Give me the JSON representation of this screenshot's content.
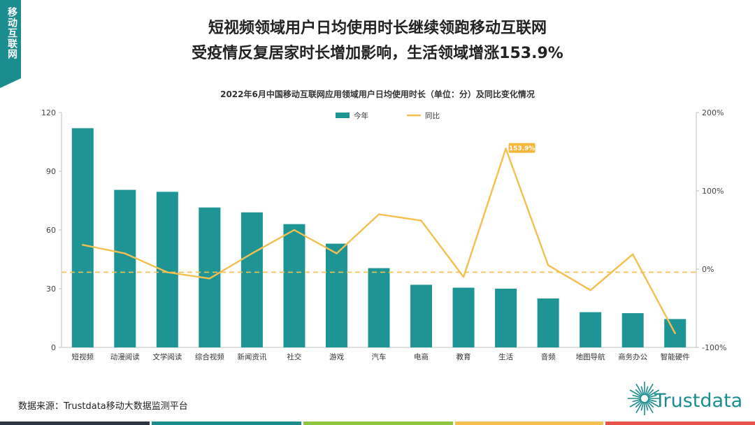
{
  "side_tab": {
    "label": "移动互联网"
  },
  "headline": {
    "line1": "短视频领域用户日均使用时长继续领跑移动互联网",
    "line2": "受疫情反复居家时长增加影响，生活领域增涨153.9%"
  },
  "source": "数据来源：Trustdata移动大数据监测平台",
  "logo": {
    "text": "Trustdata",
    "icon": "sunburst-logo-icon"
  },
  "colors": {
    "accent": "#1c8d8f",
    "bar": "#1e9594",
    "line": "#f5bf4f",
    "callout": "#f5b73b",
    "footer": [
      "#2c3440",
      "#1c8d8f",
      "#8dc53e",
      "#f5bf4f",
      "#e8534a"
    ]
  },
  "chart_data": {
    "type": "bar",
    "title": "2022年6月中国移动互联网应用领域用户日均使用时长（单位：分）及同比变化情况",
    "categories": [
      "短视频",
      "动漫阅读",
      "文学阅读",
      "综合视频",
      "新闻资讯",
      "社交",
      "游戏",
      "汽车",
      "电商",
      "教育",
      "生活",
      "音频",
      "地图导航",
      "商务办公",
      "智能硬件"
    ],
    "series": [
      {
        "name": "今年",
        "type": "bar",
        "axis": "left",
        "values": [
          112,
          80.5,
          79.5,
          71.5,
          69,
          63,
          53,
          40.5,
          32,
          30.5,
          30,
          25,
          18,
          17.5,
          14.5
        ]
      },
      {
        "name": "同比",
        "type": "line",
        "axis": "right",
        "values": [
          31,
          20,
          -4,
          -12,
          20,
          50,
          20,
          70,
          62,
          -10,
          153.9,
          5,
          -27,
          19,
          -82
        ]
      }
    ],
    "left_axis": {
      "ylim": [
        0,
        120
      ],
      "ticks": [
        "0",
        "30",
        "60",
        "90",
        "120"
      ]
    },
    "right_axis": {
      "ylim": [
        -100,
        200
      ],
      "ticks": [
        "-100%",
        "0%",
        "100%",
        "200%"
      ]
    },
    "reference_line": {
      "axis": "right",
      "value": -4,
      "style": "dashed"
    },
    "annotation": {
      "series": "同比",
      "category": "生活",
      "text": "153.9%"
    },
    "legend": {
      "position": "top-center"
    },
    "grid": false
  }
}
